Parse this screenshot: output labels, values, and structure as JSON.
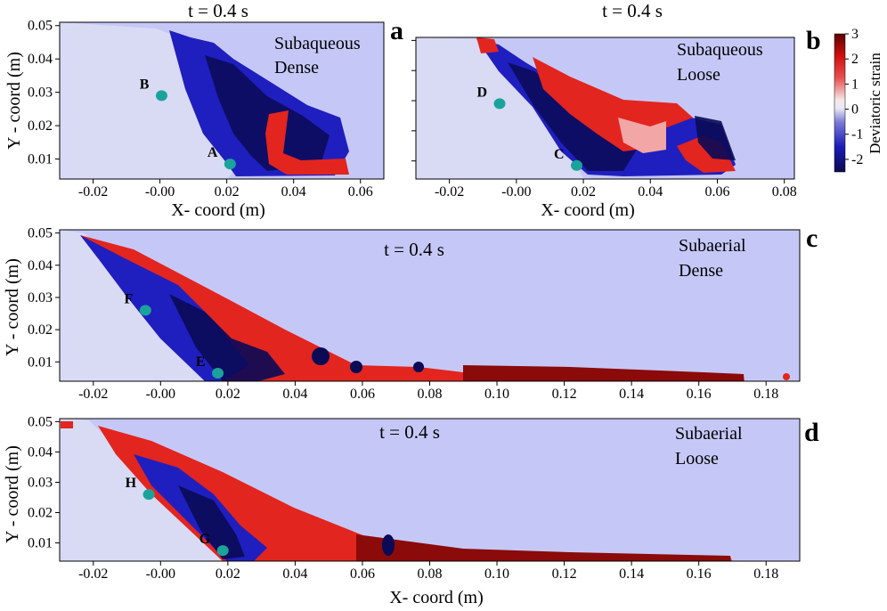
{
  "panel_letters": {
    "a": "a",
    "b": "b",
    "c": "c",
    "d": "d"
  },
  "colors": {
    "background_field": "#c5c8f7",
    "marker": "#1aa39b",
    "negative_strain": "#0a0a55",
    "positive_strain": "#8b0a0a"
  },
  "colorbar": {
    "label": "Deviatoric strain",
    "range": [
      -2.5,
      3
    ],
    "ticks": [
      3,
      2,
      1,
      0,
      -1,
      -2
    ],
    "tick_labels": [
      "3",
      "2",
      "1",
      "0",
      "-1",
      "-2"
    ]
  },
  "chart_data": [
    {
      "type": "heatmap",
      "panel": "a",
      "title": "t = 0.4 s",
      "annotations": [
        "Subaqueous",
        "Dense"
      ],
      "xlabel": "X- coord (m)",
      "ylabel": "Y - coord (m)",
      "xlim": [
        -0.03,
        0.067
      ],
      "ylim": [
        0.004,
        0.051
      ],
      "xticks": [
        -0.02,
        0.0,
        0.02,
        0.04,
        0.06
      ],
      "xtick_labels": [
        "-0.02",
        "-0.00",
        "0.02",
        "0.04",
        "0.06"
      ],
      "yticks": [
        0.01,
        0.02,
        0.03,
        0.04,
        0.05
      ],
      "ytick_labels": [
        "0.01",
        "0.02",
        "0.03",
        "0.04",
        "0.05"
      ],
      "colorbar_label": "Deviatoric strain",
      "points": [
        {
          "label": "B",
          "x": 0.0005,
          "y": 0.029
        },
        {
          "label": "A",
          "x": 0.021,
          "y": 0.0085
        }
      ]
    },
    {
      "type": "heatmap",
      "panel": "b",
      "title": "t = 0.4 s",
      "annotations": [
        "Subaqueous",
        "Loose"
      ],
      "xlabel": "X- coord (m)",
      "ylabel": "",
      "xlim": [
        -0.03,
        0.083
      ],
      "ylim": [
        0.004,
        0.051
      ],
      "xticks": [
        -0.02,
        0.0,
        0.02,
        0.04,
        0.06,
        0.08
      ],
      "xtick_labels": [
        "-0.02",
        "-0.00",
        "0.02",
        "0.04",
        "0.06",
        "0.08"
      ],
      "yticks": [
        0.01,
        0.02,
        0.03,
        0.04,
        0.05
      ],
      "ytick_labels": [
        "",
        "",
        "",
        "",
        ""
      ],
      "colorbar_label": "Deviatoric strain",
      "points": [
        {
          "label": "D",
          "x": -0.005,
          "y": 0.029
        },
        {
          "label": "C",
          "x": 0.018,
          "y": 0.0085
        }
      ]
    },
    {
      "type": "heatmap",
      "panel": "c",
      "title": "t = 0.4 s",
      "annotations": [
        "Subaerial",
        "Dense"
      ],
      "xlabel": "",
      "ylabel": "Y - coord (m)",
      "xlim": [
        -0.03,
        0.19
      ],
      "ylim": [
        0.004,
        0.051
      ],
      "xticks": [
        -0.02,
        0.0,
        0.02,
        0.04,
        0.06,
        0.08,
        0.1,
        0.12,
        0.14,
        0.16,
        0.18
      ],
      "xtick_labels": [
        "-0.02",
        "-0.00",
        "0.02",
        "0.04",
        "0.06",
        "0.08",
        "0.10",
        "0.12",
        "0.14",
        "0.16",
        "0.18"
      ],
      "yticks": [
        0.01,
        0.02,
        0.03,
        0.04,
        0.05
      ],
      "ytick_labels": [
        "0.01",
        "0.02",
        "0.03",
        "0.04",
        "0.05"
      ],
      "colorbar_label": "Deviatoric strain",
      "points": [
        {
          "label": "F",
          "x": -0.0045,
          "y": 0.026
        },
        {
          "label": "E",
          "x": 0.017,
          "y": 0.0065
        }
      ]
    },
    {
      "type": "heatmap",
      "panel": "d",
      "title": "t = 0.4 s",
      "annotations": [
        "Subaerial",
        "Loose"
      ],
      "xlabel": "X- coord (m)",
      "ylabel": "Y - coord (m)",
      "xlim": [
        -0.03,
        0.19
      ],
      "ylim": [
        0.004,
        0.051
      ],
      "xticks": [
        -0.02,
        0.0,
        0.02,
        0.04,
        0.06,
        0.08,
        0.1,
        0.12,
        0.14,
        0.16,
        0.18
      ],
      "xtick_labels": [
        "-0.02",
        "-0.00",
        "0.02",
        "0.04",
        "0.06",
        "0.08",
        "0.10",
        "0.12",
        "0.14",
        "0.16",
        "0.18"
      ],
      "yticks": [
        0.01,
        0.02,
        0.03,
        0.04,
        0.05
      ],
      "ytick_labels": [
        "0.01",
        "0.02",
        "0.03",
        "0.04",
        "0.05"
      ],
      "colorbar_label": "Deviatoric strain",
      "points": [
        {
          "label": "H",
          "x": -0.0035,
          "y": 0.026
        },
        {
          "label": "G",
          "x": 0.0185,
          "y": 0.0075
        }
      ]
    }
  ]
}
